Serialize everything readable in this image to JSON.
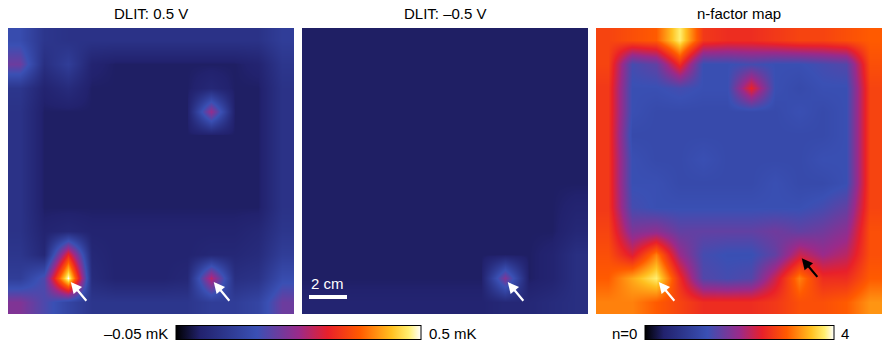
{
  "chart_data": {
    "type": "heatmap",
    "tick_labels": false,
    "colorbars": [
      {
        "range": [
          -0.05,
          0.5
        ],
        "labels": [
          "–0.05 mK",
          "0.5 mK"
        ]
      },
      {
        "range": [
          0,
          4
        ],
        "labels": [
          "n=0",
          "4"
        ]
      }
    ],
    "panels": [
      {
        "title": "DLIT: 0.5 V",
        "colorbar": 0,
        "arrows": [
          {
            "col": 2,
            "row": 10,
            "color": "white"
          },
          {
            "col": 8,
            "row": 10,
            "color": "white"
          }
        ],
        "cells": [
          [
            0.12,
            0.06,
            0.05,
            0.05,
            0.05,
            0.05,
            0.05,
            0.05,
            0.05,
            0.05,
            0.05,
            0.08
          ],
          [
            0.18,
            0.04,
            0.08,
            0.01,
            0.0,
            0.0,
            0.0,
            0.0,
            0.0,
            0.0,
            0.01,
            0.06
          ],
          [
            0.06,
            0.01,
            0.03,
            0.0,
            0.0,
            0.0,
            0.0,
            0.0,
            0.02,
            0.0,
            0.0,
            0.05
          ],
          [
            0.05,
            0.0,
            0.0,
            0.0,
            0.0,
            0.0,
            0.0,
            0.0,
            0.22,
            0.0,
            0.0,
            0.05
          ],
          [
            0.05,
            0.0,
            0.0,
            0.0,
            0.0,
            0.0,
            0.0,
            0.0,
            0.0,
            0.0,
            0.0,
            0.05
          ],
          [
            0.05,
            0.0,
            0.0,
            0.0,
            0.0,
            0.0,
            0.0,
            0.0,
            0.0,
            0.0,
            0.0,
            0.05
          ],
          [
            0.05,
            0.0,
            0.0,
            0.0,
            0.0,
            0.0,
            0.0,
            0.0,
            0.0,
            0.0,
            0.0,
            0.05
          ],
          [
            0.05,
            0.0,
            0.0,
            0.0,
            0.0,
            0.0,
            0.0,
            0.0,
            0.0,
            0.0,
            0.0,
            0.05
          ],
          [
            0.05,
            0.01,
            0.02,
            0.01,
            0.01,
            0.01,
            0.01,
            0.01,
            0.01,
            0.01,
            0.02,
            0.06
          ],
          [
            0.06,
            0.02,
            0.3,
            0.02,
            0.01,
            0.01,
            0.01,
            0.01,
            0.02,
            0.02,
            0.03,
            0.08
          ],
          [
            0.08,
            0.15,
            0.5,
            0.03,
            0.01,
            0.01,
            0.01,
            0.02,
            0.25,
            0.04,
            0.05,
            0.12
          ],
          [
            0.2,
            0.15,
            0.1,
            0.06,
            0.06,
            0.06,
            0.06,
            0.06,
            0.08,
            0.08,
            0.1,
            0.18
          ]
        ]
      },
      {
        "title": "DLIT: –0.5 V",
        "colorbar": 0,
        "scale_bar": "2 cm",
        "arrows": [
          {
            "col": 8,
            "row": 10,
            "color": "white"
          }
        ],
        "cells": [
          [
            0.0,
            0.0,
            0.0,
            0.0,
            0.0,
            0.0,
            0.0,
            0.0,
            0.0,
            0.0,
            0.0,
            0.0
          ],
          [
            0.0,
            0.0,
            0.0,
            0.0,
            0.0,
            0.0,
            0.0,
            0.0,
            0.0,
            0.0,
            0.0,
            0.0
          ],
          [
            0.0,
            0.0,
            0.0,
            0.0,
            0.0,
            0.0,
            0.0,
            0.0,
            0.0,
            0.0,
            0.0,
            0.0
          ],
          [
            0.0,
            0.0,
            0.0,
            0.0,
            0.0,
            0.0,
            0.0,
            0.0,
            0.0,
            0.0,
            0.0,
            0.0
          ],
          [
            0.0,
            0.0,
            0.0,
            0.0,
            0.0,
            0.0,
            0.0,
            0.0,
            0.0,
            0.0,
            0.0,
            0.0
          ],
          [
            0.0,
            0.0,
            0.0,
            0.0,
            0.0,
            0.0,
            0.0,
            0.0,
            0.0,
            0.0,
            0.0,
            0.0
          ],
          [
            0.0,
            0.0,
            0.0,
            0.0,
            0.0,
            0.0,
            0.0,
            0.0,
            0.0,
            0.0,
            0.0,
            0.0
          ],
          [
            0.0,
            0.0,
            0.0,
            0.0,
            0.0,
            0.0,
            0.0,
            0.0,
            0.0,
            0.0,
            0.0,
            0.01
          ],
          [
            0.0,
            0.0,
            0.0,
            0.0,
            0.0,
            0.0,
            0.0,
            0.0,
            0.0,
            0.0,
            0.0,
            0.02
          ],
          [
            0.0,
            0.0,
            0.0,
            0.0,
            0.0,
            0.0,
            0.0,
            0.0,
            0.0,
            0.0,
            0.01,
            0.04
          ],
          [
            0.0,
            0.0,
            0.0,
            0.0,
            0.0,
            0.0,
            0.0,
            0.0,
            0.2,
            0.0,
            0.01,
            0.04
          ],
          [
            0.01,
            0.01,
            0.01,
            0.01,
            0.01,
            0.01,
            0.01,
            0.01,
            0.02,
            0.02,
            0.03,
            0.04
          ]
        ]
      },
      {
        "title": "n-factor map",
        "colorbar": 1,
        "arrows": [
          {
            "col": 2,
            "row": 10,
            "color": "white"
          },
          {
            "col": 8,
            "row": 9,
            "color": "black"
          }
        ],
        "cells": [
          [
            2.8,
            2.9,
            3.0,
            3.8,
            2.7,
            2.6,
            2.6,
            2.7,
            2.8,
            2.8,
            2.9,
            3.0
          ],
          [
            2.8,
            1.4,
            1.6,
            2.6,
            1.3,
            1.3,
            1.4,
            1.3,
            1.3,
            1.4,
            1.5,
            2.9
          ],
          [
            2.7,
            1.3,
            1.3,
            1.4,
            1.3,
            1.3,
            2.5,
            1.3,
            1.2,
            1.3,
            1.3,
            2.8
          ],
          [
            2.7,
            1.3,
            1.2,
            1.2,
            1.2,
            1.2,
            1.2,
            1.2,
            1.3,
            1.2,
            1.3,
            2.8
          ],
          [
            2.7,
            1.2,
            1.2,
            1.2,
            1.2,
            1.2,
            1.2,
            1.2,
            1.2,
            1.2,
            1.3,
            2.8
          ],
          [
            2.7,
            1.3,
            1.2,
            1.2,
            1.3,
            1.2,
            1.2,
            1.2,
            1.2,
            1.3,
            1.3,
            2.8
          ],
          [
            2.7,
            1.3,
            1.3,
            1.2,
            1.2,
            1.2,
            1.2,
            1.3,
            1.2,
            1.2,
            1.3,
            2.8
          ],
          [
            2.7,
            1.4,
            1.3,
            1.3,
            1.3,
            1.3,
            1.3,
            1.3,
            1.3,
            1.4,
            1.6,
            2.8
          ],
          [
            2.8,
            1.8,
            1.9,
            1.6,
            1.6,
            1.6,
            1.6,
            1.7,
            1.6,
            1.7,
            1.9,
            2.9
          ],
          [
            2.9,
            2.4,
            3.2,
            2.0,
            1.4,
            1.3,
            1.3,
            1.6,
            2.3,
            2.0,
            2.2,
            2.9
          ],
          [
            3.0,
            3.4,
            3.8,
            2.6,
            1.5,
            1.4,
            1.5,
            2.3,
            3.2,
            2.6,
            2.6,
            3.0
          ],
          [
            3.2,
            3.2,
            3.0,
            2.8,
            2.6,
            2.6,
            2.6,
            2.7,
            2.9,
            2.9,
            3.0,
            3.3
          ]
        ]
      }
    ]
  }
}
